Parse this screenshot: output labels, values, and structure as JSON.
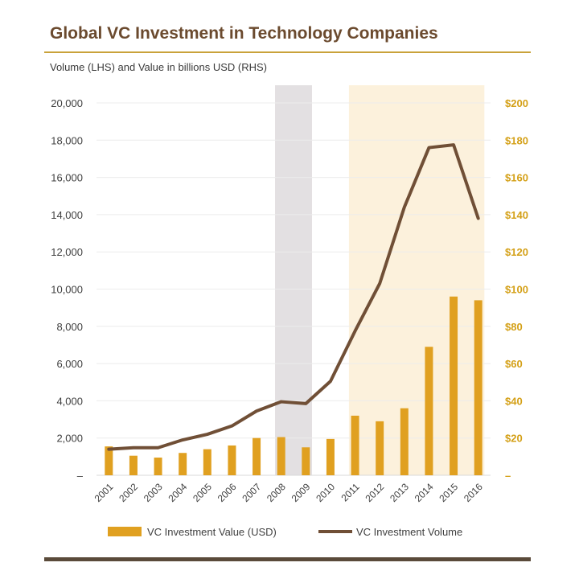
{
  "title": "Global VC Investment in Technology Companies",
  "subtitle": "Volume (LHS) and Value in billions USD (RHS)",
  "colors": {
    "bar": "#E0A020",
    "line": "#704F36",
    "recession_shade": "#E3E0E2",
    "growth_shade": "#FCF1DC",
    "title": "#6B4A2E",
    "rule": "#C9A23A"
  },
  "chart_data": {
    "type": "bar",
    "categories": [
      "2001",
      "2002",
      "2003",
      "2004",
      "2005",
      "2006",
      "2007",
      "2008",
      "2009",
      "2010",
      "2011",
      "2012",
      "2013",
      "2014",
      "2015",
      "2016"
    ],
    "series": [
      {
        "name": "VC Investment Value (USD)",
        "type": "bar",
        "axis": "right",
        "values": [
          15.5,
          10.5,
          9.5,
          12,
          14,
          16,
          20,
          20.5,
          15,
          19.5,
          32,
          29,
          36,
          69,
          96,
          94
        ]
      },
      {
        "name": "VC Investment Volume",
        "type": "line",
        "axis": "left",
        "values": [
          1400,
          1480,
          1480,
          1900,
          2200,
          2650,
          3450,
          3950,
          3850,
          5050,
          7750,
          10300,
          14400,
          17600,
          17750,
          13800
        ]
      }
    ],
    "y_left": {
      "min": 0,
      "max": 20000,
      "ticks": [
        "–",
        "2,000",
        "4,000",
        "6,000",
        "8,000",
        "10,000",
        "12,000",
        "14,000",
        "16,000",
        "18,000",
        "20,000"
      ]
    },
    "y_right": {
      "min": 0,
      "max": 200,
      "ticks": [
        "–",
        "$20",
        "$40",
        "$60",
        "$80",
        "$100",
        "$120",
        "$140",
        "$160",
        "$180",
        "$200"
      ]
    },
    "shaded_ranges": [
      {
        "from": "2008",
        "to": "2009",
        "kind": "recession"
      },
      {
        "from": "2011",
        "to": "2016",
        "kind": "growth"
      }
    ],
    "grid": true,
    "legend_position": "bottom"
  }
}
